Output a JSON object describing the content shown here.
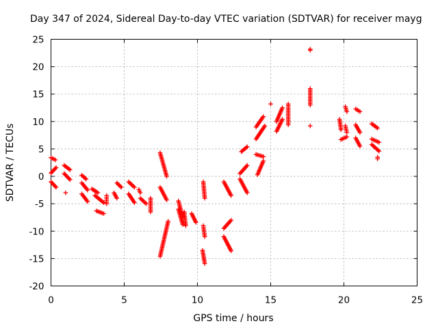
{
  "chart_data": {
    "type": "scatter",
    "title": "Day 347 of 2024, Sidereal Day-to-day VTEC variation (SDTVAR) for receiver mayg",
    "xlabel": "GPS time / hours",
    "ylabel": "SDTVAR / TECUs",
    "xlim": [
      0,
      25
    ],
    "ylim": [
      -20,
      25
    ],
    "xticks": [
      "0",
      "5",
      "10",
      "15",
      "20",
      "25"
    ],
    "yticks": [
      "-20",
      "-15",
      "-10",
      "-5",
      "0",
      "5",
      "10",
      "15",
      "20",
      "25"
    ],
    "grid": true,
    "marker": "+",
    "color": "#ff0000",
    "series": [
      {
        "name": "SDTVAR",
        "segments": [
          [
            0.0,
            3.4,
            0.3,
            3.0
          ],
          [
            0.0,
            0.6,
            0.35,
            1.6
          ],
          [
            0.0,
            -1.0,
            0.35,
            -2.0
          ],
          [
            0.9,
            2.0,
            1.3,
            1.2
          ],
          [
            0.9,
            0.5,
            1.3,
            -0.6
          ],
          [
            1.0,
            -3.0,
            1.0,
            -3.0
          ],
          [
            2.1,
            0.2,
            2.4,
            -0.5
          ],
          [
            2.1,
            -1.2,
            2.5,
            -2.5
          ],
          [
            2.1,
            -3.2,
            2.5,
            -4.6
          ],
          [
            2.8,
            -2.3,
            3.2,
            -3.0
          ],
          [
            3.0,
            -3.5,
            3.6,
            -4.8
          ],
          [
            3.1,
            -6.3,
            3.6,
            -6.8
          ],
          [
            3.8,
            -3.5,
            3.8,
            -5.0
          ],
          [
            4.3,
            -3.0,
            4.5,
            -4.0
          ],
          [
            4.5,
            -1.2,
            4.8,
            -2.0
          ],
          [
            5.3,
            -1.0,
            5.7,
            -2.0
          ],
          [
            5.3,
            -3.2,
            5.7,
            -4.8
          ],
          [
            6.0,
            -2.4,
            6.1,
            -3.0
          ],
          [
            6.1,
            -4.0,
            6.5,
            -5.0
          ],
          [
            6.8,
            -4.0,
            6.8,
            -6.5
          ],
          [
            7.45,
            4.3,
            7.9,
            0.0
          ],
          [
            7.45,
            -2.0,
            7.9,
            -4.3
          ],
          [
            7.45,
            -14.6,
            8.0,
            -8.2
          ],
          [
            8.7,
            -4.5,
            9.0,
            -7.5
          ],
          [
            8.7,
            -6.0,
            9.0,
            -8.8
          ],
          [
            9.1,
            -6.5,
            9.2,
            -9.0
          ],
          [
            9.6,
            -6.8,
            9.9,
            -8.4
          ],
          [
            10.4,
            -1.0,
            10.5,
            -4.0
          ],
          [
            10.4,
            -9.0,
            10.5,
            -11.0
          ],
          [
            10.35,
            -13.5,
            10.5,
            -15.9
          ],
          [
            11.8,
            -1.0,
            12.3,
            -3.5
          ],
          [
            11.8,
            -9.5,
            12.3,
            -8.0
          ],
          [
            11.8,
            -11.0,
            12.3,
            -13.6
          ],
          [
            12.9,
            0.5,
            13.4,
            2.0
          ],
          [
            12.9,
            -0.5,
            13.4,
            -3.0
          ],
          [
            13.0,
            4.5,
            13.4,
            5.4
          ],
          [
            14.0,
            9.0,
            14.5,
            10.9
          ],
          [
            14.0,
            6.8,
            14.6,
            9.2
          ],
          [
            14.0,
            4.0,
            14.5,
            3.6
          ],
          [
            14.1,
            0.3,
            14.5,
            2.8
          ],
          [
            15.0,
            13.2,
            15.0,
            13.2
          ],
          [
            15.4,
            10.0,
            15.8,
            12.5
          ],
          [
            15.4,
            8.2,
            15.8,
            10.4
          ],
          [
            16.2,
            9.4,
            16.2,
            13.2
          ],
          [
            17.7,
            23.2,
            17.7,
            23.0
          ],
          [
            17.7,
            16.0,
            17.7,
            13.0
          ],
          [
            17.7,
            9.2,
            17.7,
            9.2
          ],
          [
            19.7,
            10.4,
            19.8,
            8.5
          ],
          [
            19.8,
            6.7,
            20.2,
            7.2
          ],
          [
            20.1,
            12.7,
            20.2,
            11.8
          ],
          [
            20.1,
            9.2,
            20.2,
            8.0
          ],
          [
            20.8,
            12.3,
            21.1,
            11.8
          ],
          [
            20.8,
            9.4,
            21.1,
            8.0
          ],
          [
            20.8,
            7.0,
            21.1,
            5.5
          ],
          [
            21.9,
            9.6,
            22.3,
            8.8
          ],
          [
            21.9,
            6.8,
            22.4,
            6.2
          ],
          [
            21.9,
            5.8,
            22.4,
            4.6
          ],
          [
            22.3,
            3.5,
            22.3,
            3.2
          ]
        ]
      }
    ]
  }
}
